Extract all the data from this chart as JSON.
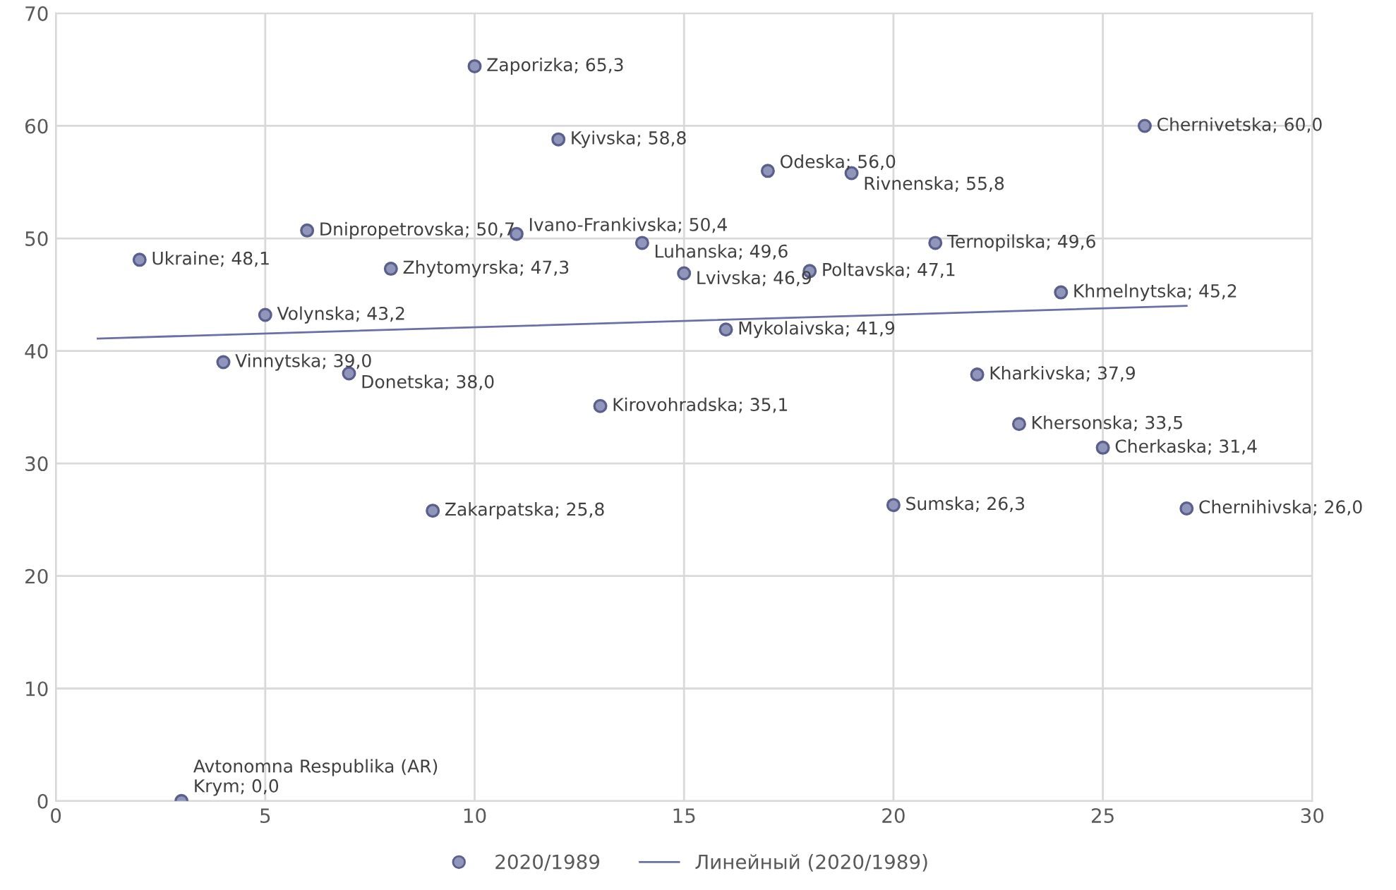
{
  "chart_data": {
    "type": "scatter",
    "xlim": [
      0,
      30
    ],
    "xticks": [
      0,
      5,
      10,
      15,
      20,
      25,
      30
    ],
    "ylim": [
      0,
      70
    ],
    "yticks": [
      0,
      10,
      20,
      30,
      40,
      50,
      60,
      70
    ],
    "grid": true,
    "legend": "bottom",
    "marker": "circle",
    "series": [
      {
        "name": "2020/1989",
        "color": "#9095bb",
        "x": [
          2,
          3,
          4,
          5,
          6,
          7,
          8,
          9,
          10,
          11,
          12,
          13,
          14,
          15,
          16,
          17,
          18,
          19,
          20,
          21,
          22,
          23,
          24,
          25,
          26,
          27
        ],
        "values": [
          48.1,
          0.0,
          39.0,
          43.2,
          50.7,
          38.0,
          47.3,
          25.8,
          65.3,
          50.4,
          58.8,
          35.1,
          49.6,
          46.9,
          41.9,
          56.0,
          47.1,
          55.8,
          26.3,
          49.6,
          37.9,
          33.5,
          45.2,
          31.4,
          60.0,
          26.0
        ],
        "value_labels": [
          "Ukraine; 48,1",
          "Avtonomna Respublika (AR)\nKrym; 0,0",
          "Vinnytska; 39,0",
          "Volynska; 43,2",
          "Dnipropetrovska; 50,7",
          "Donetska; 38,0",
          "Zhytomyrska; 47,3",
          "Zakarpatska; 25,8",
          "Zaporizka; 65,3",
          "Ivano-Frankivska; 50,4",
          "Kyivska; 58,8",
          "Kirovohradska; 35,1",
          "Luhanska; 49,6",
          "Lvivska; 46,9",
          "Mykolaivska; 41,9",
          "Odeska; 56,0",
          "Poltavska; 47,1",
          "Rivnenska; 55,8",
          "Sumska; 26,3",
          "Ternopilska; 49,6",
          "Kharkivska; 37,9",
          "Khersonska; 33,5",
          "Khmelnytska; 45,2",
          "Cherkaska; 31,4",
          "Chernivetska; 60,0",
          "Chernihivska; 26,0"
        ]
      },
      {
        "name": "Линейный (2020/1989)",
        "type": "line",
        "color": "#6a6fa6",
        "marker": "none",
        "line_style": "solid",
        "x": [
          1,
          27
        ],
        "values": [
          41.1,
          44.0
        ]
      }
    ]
  }
}
